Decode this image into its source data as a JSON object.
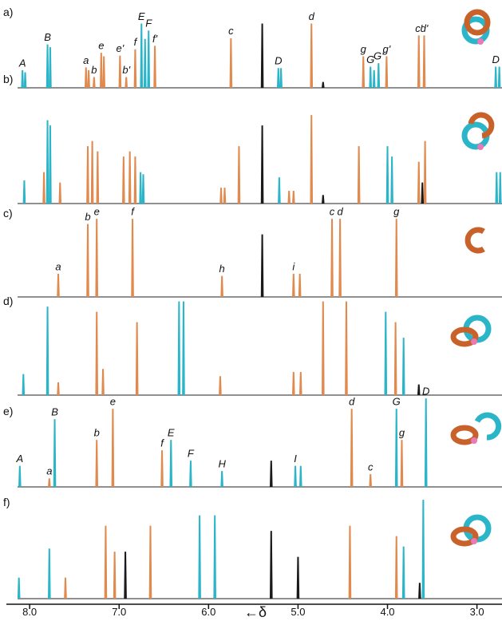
{
  "chart_data": {
    "type": "nmr",
    "x_label": "←δ",
    "xlim": [
      8.26,
      2.72
    ],
    "xticks": [
      {
        "value": 8,
        "label": "8.0"
      },
      {
        "value": 7,
        "label": "7.0"
      },
      {
        "value": 6,
        "label": "6.0"
      },
      {
        "value": 5,
        "label": "5.0"
      },
      {
        "value": 4,
        "label": "4.0"
      },
      {
        "value": 3,
        "label": "3.0"
      }
    ],
    "panels": [
      {
        "label": "a)",
        "series": [
          {
            "color": "#2bb5c8",
            "peaks": [
              {
                "x": 8.08,
                "h": 25,
                "label": "A"
              },
              {
                "x": 8.05,
                "h": 22
              },
              {
                "x": 7.8,
                "h": 62,
                "label": "B"
              },
              {
                "x": 7.77,
                "h": 58
              },
              {
                "x": 6.75,
                "h": 92,
                "label": "E"
              },
              {
                "x": 6.67,
                "h": 82,
                "label": "F"
              },
              {
                "x": 6.71,
                "h": 70
              },
              {
                "x": 5.22,
                "h": 28,
                "label": "D"
              },
              {
                "x": 5.19,
                "h": 28
              },
              {
                "x": 4.19,
                "h": 30,
                "label": "G"
              },
              {
                "x": 4.15,
                "h": 25
              },
              {
                "x": 4.1,
                "h": 35,
                "label": "G'"
              },
              {
                "x": 2.79,
                "h": 30,
                "label": "D"
              },
              {
                "x": 2.75,
                "h": 30
              }
            ]
          },
          {
            "color": "#e08a4f",
            "peaks": [
              {
                "x": 7.37,
                "h": 29,
                "label": "a"
              },
              {
                "x": 7.34,
                "h": 25
              },
              {
                "x": 7.28,
                "h": 15,
                "label": "b"
              },
              {
                "x": 7.2,
                "h": 50,
                "label": "e"
              },
              {
                "x": 7.17,
                "h": 45
              },
              {
                "x": 6.99,
                "h": 46,
                "label": "e'"
              },
              {
                "x": 6.92,
                "h": 15,
                "label": "b'"
              },
              {
                "x": 6.82,
                "h": 55,
                "label": "f"
              },
              {
                "x": 6.6,
                "h": 60,
                "label": "f'"
              },
              {
                "x": 5.75,
                "h": 71,
                "label": "c"
              },
              {
                "x": 4.85,
                "h": 92,
                "label": "d"
              },
              {
                "x": 4.27,
                "h": 45,
                "label": "g"
              },
              {
                "x": 4.01,
                "h": 45,
                "label": "g'"
              },
              {
                "x": 3.65,
                "h": 75,
                "label": "c'"
              },
              {
                "x": 3.59,
                "h": 75,
                "label": "d'"
              }
            ]
          },
          {
            "color": "#1a1a1a",
            "peaks": [
              {
                "x": 5.4,
                "h": 92
              },
              {
                "x": 4.72,
                "h": 8
              }
            ]
          }
        ]
      },
      {
        "label": "b)",
        "series": [
          {
            "color": "#2bb5c8",
            "peaks": [
              {
                "x": 8.06,
                "h": 22
              },
              {
                "x": 7.8,
                "h": 80
              },
              {
                "x": 7.77,
                "h": 75
              },
              {
                "x": 6.76,
                "h": 30
              },
              {
                "x": 6.73,
                "h": 28
              },
              {
                "x": 5.21,
                "h": 25
              },
              {
                "x": 4.0,
                "h": 55
              },
              {
                "x": 3.95,
                "h": 45
              },
              {
                "x": 2.78,
                "h": 30
              },
              {
                "x": 2.74,
                "h": 30
              }
            ]
          },
          {
            "color": "#e08a4f",
            "peaks": [
              {
                "x": 7.84,
                "h": 30
              },
              {
                "x": 7.66,
                "h": 20
              },
              {
                "x": 7.35,
                "h": 55
              },
              {
                "x": 7.3,
                "h": 60
              },
              {
                "x": 7.24,
                "h": 50
              },
              {
                "x": 6.95,
                "h": 45
              },
              {
                "x": 6.88,
                "h": 50
              },
              {
                "x": 6.82,
                "h": 45
              },
              {
                "x": 5.86,
                "h": 15
              },
              {
                "x": 5.82,
                "h": 15
              },
              {
                "x": 5.66,
                "h": 55
              },
              {
                "x": 5.1,
                "h": 12
              },
              {
                "x": 5.05,
                "h": 12
              },
              {
                "x": 4.85,
                "h": 85
              },
              {
                "x": 4.32,
                "h": 55
              },
              {
                "x": 3.65,
                "h": 40
              },
              {
                "x": 3.58,
                "h": 60
              }
            ]
          },
          {
            "color": "#1a1a1a",
            "peaks": [
              {
                "x": 5.4,
                "h": 75
              },
              {
                "x": 4.72,
                "h": 8
              },
              {
                "x": 3.61,
                "h": 20
              }
            ]
          }
        ]
      },
      {
        "label": "c)",
        "series": [
          {
            "color": "#e08a4f",
            "peaks": [
              {
                "x": 7.68,
                "h": 22,
                "label": "a"
              },
              {
                "x": 7.35,
                "h": 70,
                "label": "b"
              },
              {
                "x": 7.25,
                "h": 75,
                "label": "e"
              },
              {
                "x": 6.85,
                "h": 75,
                "label": "f"
              },
              {
                "x": 5.85,
                "h": 20,
                "label": "h"
              },
              {
                "x": 5.05,
                "h": 22,
                "label": "i"
              },
              {
                "x": 4.98,
                "h": 22
              },
              {
                "x": 4.62,
                "h": 75,
                "label": "c"
              },
              {
                "x": 4.53,
                "h": 75,
                "label": "d"
              },
              {
                "x": 3.9,
                "h": 75,
                "label": "g"
              }
            ]
          },
          {
            "color": "#1a1a1a",
            "peaks": [
              {
                "x": 5.4,
                "h": 60
              }
            ]
          }
        ]
      },
      {
        "label": "d)",
        "series": [
          {
            "color": "#2bb5c8",
            "peaks": [
              {
                "x": 8.07,
                "h": 20
              },
              {
                "x": 7.8,
                "h": 85
              },
              {
                "x": 6.33,
                "h": 90
              },
              {
                "x": 6.28,
                "h": 90
              },
              {
                "x": 4.02,
                "h": 80
              },
              {
                "x": 3.82,
                "h": 55
              }
            ]
          },
          {
            "color": "#e08a4f",
            "peaks": [
              {
                "x": 7.68,
                "h": 12
              },
              {
                "x": 7.25,
                "h": 80
              },
              {
                "x": 7.18,
                "h": 25
              },
              {
                "x": 6.8,
                "h": 70
              },
              {
                "x": 5.87,
                "h": 18
              },
              {
                "x": 5.05,
                "h": 22
              },
              {
                "x": 4.97,
                "h": 22
              },
              {
                "x": 4.72,
                "h": 90
              },
              {
                "x": 4.46,
                "h": 90
              },
              {
                "x": 3.91,
                "h": 70
              }
            ]
          },
          {
            "color": "#1a1a1a",
            "peaks": [
              {
                "x": 3.65,
                "h": 10
              }
            ]
          }
        ]
      },
      {
        "label": "e)",
        "series": [
          {
            "color": "#2bb5c8",
            "peaks": [
              {
                "x": 8.11,
                "h": 20,
                "label": "A"
              },
              {
                "x": 7.72,
                "h": 65,
                "label": "B"
              },
              {
                "x": 6.42,
                "h": 45,
                "label": "E"
              },
              {
                "x": 6.2,
                "h": 25,
                "label": "F"
              },
              {
                "x": 5.85,
                "h": 15,
                "label": "H"
              },
              {
                "x": 5.03,
                "h": 20,
                "label": "I"
              },
              {
                "x": 4.97,
                "h": 20
              },
              {
                "x": 3.9,
                "h": 75,
                "label": "G"
              },
              {
                "x": 3.57,
                "h": 85,
                "label": "D"
              }
            ]
          },
          {
            "color": "#e08a4f",
            "peaks": [
              {
                "x": 7.78,
                "h": 8,
                "label": "a"
              },
              {
                "x": 7.25,
                "h": 45,
                "label": "b"
              },
              {
                "x": 7.07,
                "h": 75,
                "label": "e"
              },
              {
                "x": 6.52,
                "h": 35,
                "label": "f"
              },
              {
                "x": 4.4,
                "h": 75,
                "label": "d"
              },
              {
                "x": 4.19,
                "h": 12,
                "label": "c"
              },
              {
                "x": 3.84,
                "h": 45,
                "label": "g"
              }
            ]
          },
          {
            "color": "#1a1a1a",
            "peaks": [
              {
                "x": 5.3,
                "h": 25
              }
            ]
          }
        ]
      },
      {
        "label": "f)",
        "series": [
          {
            "color": "#2bb5c8",
            "peaks": [
              {
                "x": 8.12,
                "h": 20
              },
              {
                "x": 7.78,
                "h": 48
              },
              {
                "x": 6.1,
                "h": 80
              },
              {
                "x": 5.93,
                "h": 80
              },
              {
                "x": 3.82,
                "h": 50
              },
              {
                "x": 3.6,
                "h": 95
              }
            ]
          },
          {
            "color": "#e08a4f",
            "peaks": [
              {
                "x": 7.6,
                "h": 20
              },
              {
                "x": 7.15,
                "h": 70
              },
              {
                "x": 7.05,
                "h": 45
              },
              {
                "x": 6.65,
                "h": 70
              },
              {
                "x": 4.42,
                "h": 70
              },
              {
                "x": 3.9,
                "h": 60
              }
            ]
          },
          {
            "color": "#1a1a1a",
            "peaks": [
              {
                "x": 6.93,
                "h": 45
              },
              {
                "x": 5.3,
                "h": 65
              },
              {
                "x": 5.0,
                "h": 40
              },
              {
                "x": 3.64,
                "h": 15
              }
            ]
          }
        ]
      }
    ]
  }
}
